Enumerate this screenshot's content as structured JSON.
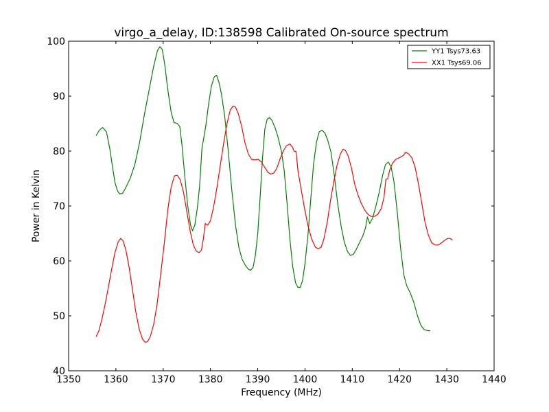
{
  "chart_data": {
    "type": "line",
    "title": "virgo_a_delay, ID:138598 Calibrated On-source spectrum",
    "xlabel": "Frequency (MHz)",
    "ylabel": "Power in Kelvin",
    "xlim": [
      1350,
      1440
    ],
    "ylim": [
      40,
      100
    ],
    "xticks": [
      1350,
      1360,
      1370,
      1380,
      1390,
      1400,
      1410,
      1420,
      1430,
      1440
    ],
    "yticks": [
      40,
      50,
      60,
      70,
      80,
      90,
      100
    ],
    "legend_position": "top-right",
    "grid": false,
    "series": [
      {
        "name": "YY1 Tsys73.63",
        "color": "#008000",
        "points": [
          [
            1355.8,
            82.8
          ],
          [
            1356.5,
            83.8
          ],
          [
            1357.2,
            84.3
          ],
          [
            1358,
            83.5
          ],
          [
            1358.7,
            80.5
          ],
          [
            1359.3,
            77
          ],
          [
            1359.8,
            74.3
          ],
          [
            1360.3,
            72.8
          ],
          [
            1360.8,
            72.2
          ],
          [
            1361.4,
            72.3
          ],
          [
            1362,
            73.2
          ],
          [
            1363,
            75
          ],
          [
            1364,
            77.5
          ],
          [
            1365,
            81.5
          ],
          [
            1366,
            86.5
          ],
          [
            1367,
            91
          ],
          [
            1368,
            95.5
          ],
          [
            1368.8,
            98.3
          ],
          [
            1369.3,
            99
          ],
          [
            1369.8,
            98.5
          ],
          [
            1370.3,
            96
          ],
          [
            1371,
            91
          ],
          [
            1371.7,
            87
          ],
          [
            1372.3,
            85.2
          ],
          [
            1373,
            85
          ],
          [
            1373.5,
            84.5
          ],
          [
            1374,
            81
          ],
          [
            1374.5,
            76
          ],
          [
            1375.2,
            70
          ],
          [
            1375.8,
            66.5
          ],
          [
            1376.2,
            65.5
          ],
          [
            1376.7,
            66.5
          ],
          [
            1377.2,
            69.5
          ],
          [
            1377.7,
            73.5
          ],
          [
            1378.2,
            80.5
          ],
          [
            1379,
            84.5
          ],
          [
            1379.6,
            88.5
          ],
          [
            1380.2,
            91.8
          ],
          [
            1380.8,
            93.5
          ],
          [
            1381.3,
            93.8
          ],
          [
            1381.8,
            92.5
          ],
          [
            1382.3,
            90.5
          ],
          [
            1383,
            86.5
          ],
          [
            1383.7,
            80.5
          ],
          [
            1384.5,
            73
          ],
          [
            1385.3,
            66.5
          ],
          [
            1386,
            62.5
          ],
          [
            1386.7,
            60.3
          ],
          [
            1387.4,
            59.2
          ],
          [
            1388,
            58.5
          ],
          [
            1388.5,
            58.3
          ],
          [
            1389,
            58.8
          ],
          [
            1389.5,
            61
          ],
          [
            1390,
            65
          ],
          [
            1390.5,
            71.5
          ],
          [
            1391,
            78.5
          ],
          [
            1391.5,
            84
          ],
          [
            1392,
            85.8
          ],
          [
            1392.5,
            86.1
          ],
          [
            1393,
            85.6
          ],
          [
            1393.7,
            84.2
          ],
          [
            1394.3,
            82.5
          ],
          [
            1395,
            80
          ],
          [
            1395.6,
            76.5
          ],
          [
            1396.2,
            70.5
          ],
          [
            1396.8,
            64
          ],
          [
            1397.4,
            59
          ],
          [
            1398,
            56
          ],
          [
            1398.5,
            55.2
          ],
          [
            1399,
            55.2
          ],
          [
            1399.5,
            56.5
          ],
          [
            1400,
            59.5
          ],
          [
            1400.6,
            64.5
          ],
          [
            1401.2,
            71
          ],
          [
            1401.8,
            77.5
          ],
          [
            1402.4,
            81.5
          ],
          [
            1403,
            83.5
          ],
          [
            1403.6,
            83.8
          ],
          [
            1404.2,
            83.3
          ],
          [
            1404.8,
            82
          ],
          [
            1405.5,
            79.8
          ],
          [
            1406.2,
            75.5
          ],
          [
            1406.9,
            70.5
          ],
          [
            1407.6,
            66.5
          ],
          [
            1408.3,
            63.5
          ],
          [
            1409,
            61.7
          ],
          [
            1409.6,
            61
          ],
          [
            1410.2,
            61.2
          ],
          [
            1410.8,
            62
          ],
          [
            1411.5,
            63.3
          ],
          [
            1412.2,
            64.5
          ],
          [
            1412.8,
            66
          ],
          [
            1413.2,
            68
          ],
          [
            1413.7,
            66.8
          ],
          [
            1414.3,
            67.8
          ],
          [
            1415,
            70
          ],
          [
            1415.7,
            72.5
          ],
          [
            1416.4,
            75.5
          ],
          [
            1417,
            77.5
          ],
          [
            1417.6,
            78
          ],
          [
            1418.2,
            77.2
          ],
          [
            1418.8,
            74.5
          ],
          [
            1419.5,
            69
          ],
          [
            1420.2,
            62.5
          ],
          [
            1420.9,
            57.5
          ],
          [
            1421.5,
            55.5
          ],
          [
            1422.2,
            54.3
          ],
          [
            1423,
            52.5
          ],
          [
            1423.8,
            50
          ],
          [
            1424.5,
            48.3
          ],
          [
            1425.2,
            47.5
          ],
          [
            1426,
            47.3
          ],
          [
            1426.5,
            47.3
          ]
        ]
      },
      {
        "name": "XX1 Tsys69.06",
        "color": "#ff0000",
        "points": [
          [
            1355.8,
            46.2
          ],
          [
            1356.4,
            47.3
          ],
          [
            1357,
            49.2
          ],
          [
            1357.7,
            52
          ],
          [
            1358.4,
            55.2
          ],
          [
            1359.1,
            58.5
          ],
          [
            1359.8,
            61.5
          ],
          [
            1360.5,
            63.5
          ],
          [
            1361,
            64.1
          ],
          [
            1361.5,
            63.7
          ],
          [
            1362.1,
            62
          ],
          [
            1362.8,
            58.8
          ],
          [
            1363.5,
            54.8
          ],
          [
            1364.2,
            50.8
          ],
          [
            1364.9,
            47.7
          ],
          [
            1365.6,
            45.8
          ],
          [
            1366.2,
            45.2
          ],
          [
            1366.7,
            45.3
          ],
          [
            1367.3,
            46.3
          ],
          [
            1368,
            48.5
          ],
          [
            1368.7,
            52
          ],
          [
            1369.4,
            57
          ],
          [
            1370.2,
            63
          ],
          [
            1371,
            69.5
          ],
          [
            1371.7,
            73.5
          ],
          [
            1372.4,
            75.5
          ],
          [
            1373,
            75.6
          ],
          [
            1373.6,
            74.8
          ],
          [
            1374.3,
            72.5
          ],
          [
            1375,
            69
          ],
          [
            1375.7,
            65.5
          ],
          [
            1376.4,
            62.8
          ],
          [
            1377,
            61.8
          ],
          [
            1377.6,
            61.5
          ],
          [
            1378.1,
            62
          ],
          [
            1378.5,
            64
          ],
          [
            1378.9,
            66.8
          ],
          [
            1379.4,
            66.5
          ],
          [
            1380,
            67.3
          ],
          [
            1380.7,
            70
          ],
          [
            1381.4,
            73.5
          ],
          [
            1382.1,
            77.5
          ],
          [
            1382.8,
            81.5
          ],
          [
            1383.5,
            85
          ],
          [
            1384.2,
            87.5
          ],
          [
            1384.8,
            88.2
          ],
          [
            1385.3,
            88
          ],
          [
            1385.9,
            86.8
          ],
          [
            1386.6,
            84.5
          ],
          [
            1387.3,
            81.5
          ],
          [
            1388,
            79.5
          ],
          [
            1388.7,
            78.5
          ],
          [
            1389.4,
            78.4
          ],
          [
            1390.1,
            78.5
          ],
          [
            1390.8,
            78
          ],
          [
            1391.5,
            77
          ],
          [
            1392.2,
            76.1
          ],
          [
            1392.8,
            75.8
          ],
          [
            1393.4,
            76
          ],
          [
            1394,
            76.8
          ],
          [
            1394.7,
            78.5
          ],
          [
            1395.4,
            80
          ],
          [
            1396.1,
            81
          ],
          [
            1396.8,
            81.3
          ],
          [
            1397.3,
            80.8
          ],
          [
            1397.7,
            80
          ],
          [
            1398.1,
            79.9
          ],
          [
            1398.5,
            76.5
          ],
          [
            1399.1,
            73.5
          ],
          [
            1399.8,
            70
          ],
          [
            1400.6,
            66.5
          ],
          [
            1401.4,
            64
          ],
          [
            1402.2,
            62.5
          ],
          [
            1402.8,
            62.2
          ],
          [
            1403.4,
            62.5
          ],
          [
            1404,
            64
          ],
          [
            1404.7,
            67
          ],
          [
            1405.4,
            71
          ],
          [
            1406.1,
            74.5
          ],
          [
            1406.8,
            77.5
          ],
          [
            1407.5,
            79.5
          ],
          [
            1408,
            80.3
          ],
          [
            1408.5,
            80.2
          ],
          [
            1409.1,
            79.2
          ],
          [
            1409.8,
            77
          ],
          [
            1410.5,
            74
          ],
          [
            1411.2,
            72
          ],
          [
            1411.9,
            70.5
          ],
          [
            1412.6,
            69.3
          ],
          [
            1413.3,
            68.5
          ],
          [
            1414,
            68.1
          ],
          [
            1414.7,
            68.1
          ],
          [
            1415.4,
            68.5
          ],
          [
            1416.1,
            69.5
          ],
          [
            1416.7,
            71.5
          ],
          [
            1417.1,
            74.8
          ],
          [
            1417.5,
            75
          ],
          [
            1417.9,
            76.5
          ],
          [
            1418.5,
            77.8
          ],
          [
            1419.2,
            78.5
          ],
          [
            1420,
            78.8
          ],
          [
            1420.8,
            79.2
          ],
          [
            1421.3,
            79.8
          ],
          [
            1421.9,
            79.5
          ],
          [
            1422.6,
            78.8
          ],
          [
            1423.3,
            77
          ],
          [
            1424,
            74
          ],
          [
            1424.7,
            70.5
          ],
          [
            1425.4,
            67
          ],
          [
            1426.1,
            64.7
          ],
          [
            1426.8,
            63.3
          ],
          [
            1427.5,
            62.9
          ],
          [
            1428.2,
            62.9
          ],
          [
            1428.9,
            63.3
          ],
          [
            1429.6,
            63.8
          ],
          [
            1430.2,
            64.1
          ],
          [
            1430.7,
            64.1
          ],
          [
            1431.2,
            63.8
          ]
        ]
      }
    ]
  }
}
